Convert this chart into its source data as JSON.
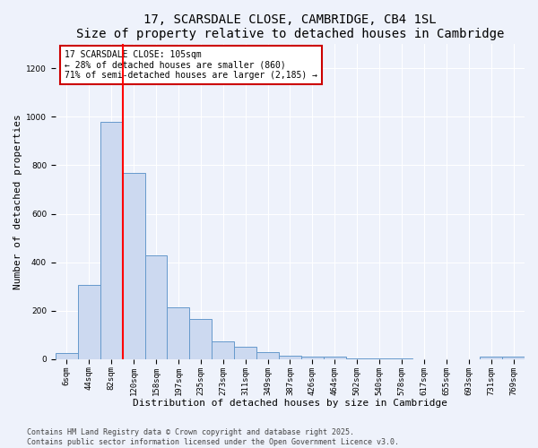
{
  "title": "17, SCARSDALE CLOSE, CAMBRIDGE, CB4 1SL",
  "subtitle": "Size of property relative to detached houses in Cambridge",
  "xlabel": "Distribution of detached houses by size in Cambridge",
  "ylabel": "Number of detached properties",
  "bar_color": "#ccd9f0",
  "bar_edge_color": "#6699cc",
  "background_color": "#eef2fb",
  "grid_color": "#ffffff",
  "categories": [
    "6sqm",
    "44sqm",
    "82sqm",
    "120sqm",
    "158sqm",
    "197sqm",
    "235sqm",
    "273sqm",
    "311sqm",
    "349sqm",
    "387sqm",
    "426sqm",
    "464sqm",
    "502sqm",
    "540sqm",
    "578sqm",
    "617sqm",
    "655sqm",
    "693sqm",
    "731sqm",
    "769sqm"
  ],
  "bar_heights": [
    25,
    305,
    980,
    770,
    430,
    215,
    165,
    75,
    50,
    30,
    15,
    10,
    10,
    5,
    5,
    5,
    0,
    0,
    0,
    10,
    10
  ],
  "ylim": [
    0,
    1300
  ],
  "yticks": [
    0,
    200,
    400,
    600,
    800,
    1000,
    1200
  ],
  "vline_x_index": 3,
  "annotation_text": "17 SCARSDALE CLOSE: 105sqm\n← 28% of detached houses are smaller (860)\n71% of semi-detached houses are larger (2,185) →",
  "annotation_box_color": "#ffffff",
  "annotation_box_edge_color": "#cc0000",
  "footer_text": "Contains HM Land Registry data © Crown copyright and database right 2025.\nContains public sector information licensed under the Open Government Licence v3.0.",
  "title_fontsize": 10,
  "xlabel_fontsize": 8,
  "ylabel_fontsize": 8,
  "tick_fontsize": 6.5,
  "annotation_fontsize": 7,
  "footer_fontsize": 6
}
